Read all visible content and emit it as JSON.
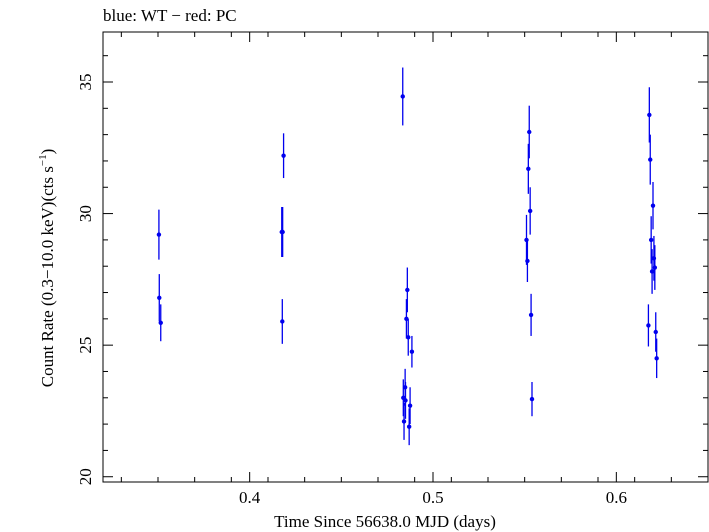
{
  "chart_data": {
    "type": "scatter",
    "title": "blue: WT − red: PC",
    "xlabel": "Time Since 56638.0 MJD (days)",
    "ylabel": "Count Rate (0.3−10.0 keV)(cts s",
    "ylabel_sup": "−1",
    "ylabel_close": ")",
    "xlim": [
      0.32,
      0.65
    ],
    "ylim": [
      19.8,
      36.9
    ],
    "x_ticks": [
      0.4,
      0.5,
      0.6
    ],
    "x_tick_labels": [
      "0.4",
      "0.5",
      "0.6"
    ],
    "y_ticks": [
      20,
      25,
      30,
      35
    ],
    "y_tick_labels": [
      "20",
      "25",
      "30",
      "35"
    ],
    "grid": false,
    "colors": {
      "series": "#0000ee",
      "axes": "#000000"
    },
    "series": [
      {
        "points": [
          {
            "x": 0.3505,
            "y": 29.2,
            "err": 0.95
          },
          {
            "x": 0.3507,
            "y": 26.8,
            "err": 0.9
          },
          {
            "x": 0.3515,
            "y": 25.85,
            "err": 0.7
          },
          {
            "x": 0.4175,
            "y": 29.3,
            "err": 0.95
          },
          {
            "x": 0.418,
            "y": 29.3,
            "err": 0.95
          },
          {
            "x": 0.4178,
            "y": 25.9,
            "err": 0.85
          },
          {
            "x": 0.4185,
            "y": 32.2,
            "err": 0.85
          },
          {
            "x": 0.4835,
            "y": 34.45,
            "err": 1.1
          },
          {
            "x": 0.4838,
            "y": 23.0,
            "err": 0.7
          },
          {
            "x": 0.4842,
            "y": 22.1,
            "err": 0.7
          },
          {
            "x": 0.4848,
            "y": 23.4,
            "err": 0.7
          },
          {
            "x": 0.485,
            "y": 22.9,
            "err": 0.7
          },
          {
            "x": 0.4855,
            "y": 26.0,
            "err": 0.75
          },
          {
            "x": 0.486,
            "y": 27.1,
            "err": 0.85
          },
          {
            "x": 0.4865,
            "y": 25.3,
            "err": 0.7
          },
          {
            "x": 0.487,
            "y": 21.9,
            "err": 0.7
          },
          {
            "x": 0.4875,
            "y": 22.7,
            "err": 0.7
          },
          {
            "x": 0.4885,
            "y": 24.75,
            "err": 0.6
          },
          {
            "x": 0.551,
            "y": 29.0,
            "err": 0.95
          },
          {
            "x": 0.5515,
            "y": 28.2,
            "err": 0.8
          },
          {
            "x": 0.552,
            "y": 31.7,
            "err": 0.95
          },
          {
            "x": 0.5525,
            "y": 33.1,
            "err": 1.0
          },
          {
            "x": 0.553,
            "y": 30.1,
            "err": 0.9
          },
          {
            "x": 0.5535,
            "y": 26.15,
            "err": 0.8
          },
          {
            "x": 0.554,
            "y": 22.95,
            "err": 0.65
          },
          {
            "x": 0.6175,
            "y": 25.75,
            "err": 0.8
          },
          {
            "x": 0.618,
            "y": 33.75,
            "err": 1.05
          },
          {
            "x": 0.6185,
            "y": 32.05,
            "err": 0.95
          },
          {
            "x": 0.619,
            "y": 29.0,
            "err": 0.9
          },
          {
            "x": 0.6195,
            "y": 27.8,
            "err": 0.85
          },
          {
            "x": 0.62,
            "y": 30.3,
            "err": 0.9
          },
          {
            "x": 0.6205,
            "y": 28.3,
            "err": 0.85
          },
          {
            "x": 0.621,
            "y": 27.95,
            "err": 0.85
          },
          {
            "x": 0.6215,
            "y": 25.5,
            "err": 0.75
          },
          {
            "x": 0.622,
            "y": 24.5,
            "err": 0.75
          }
        ]
      }
    ]
  }
}
